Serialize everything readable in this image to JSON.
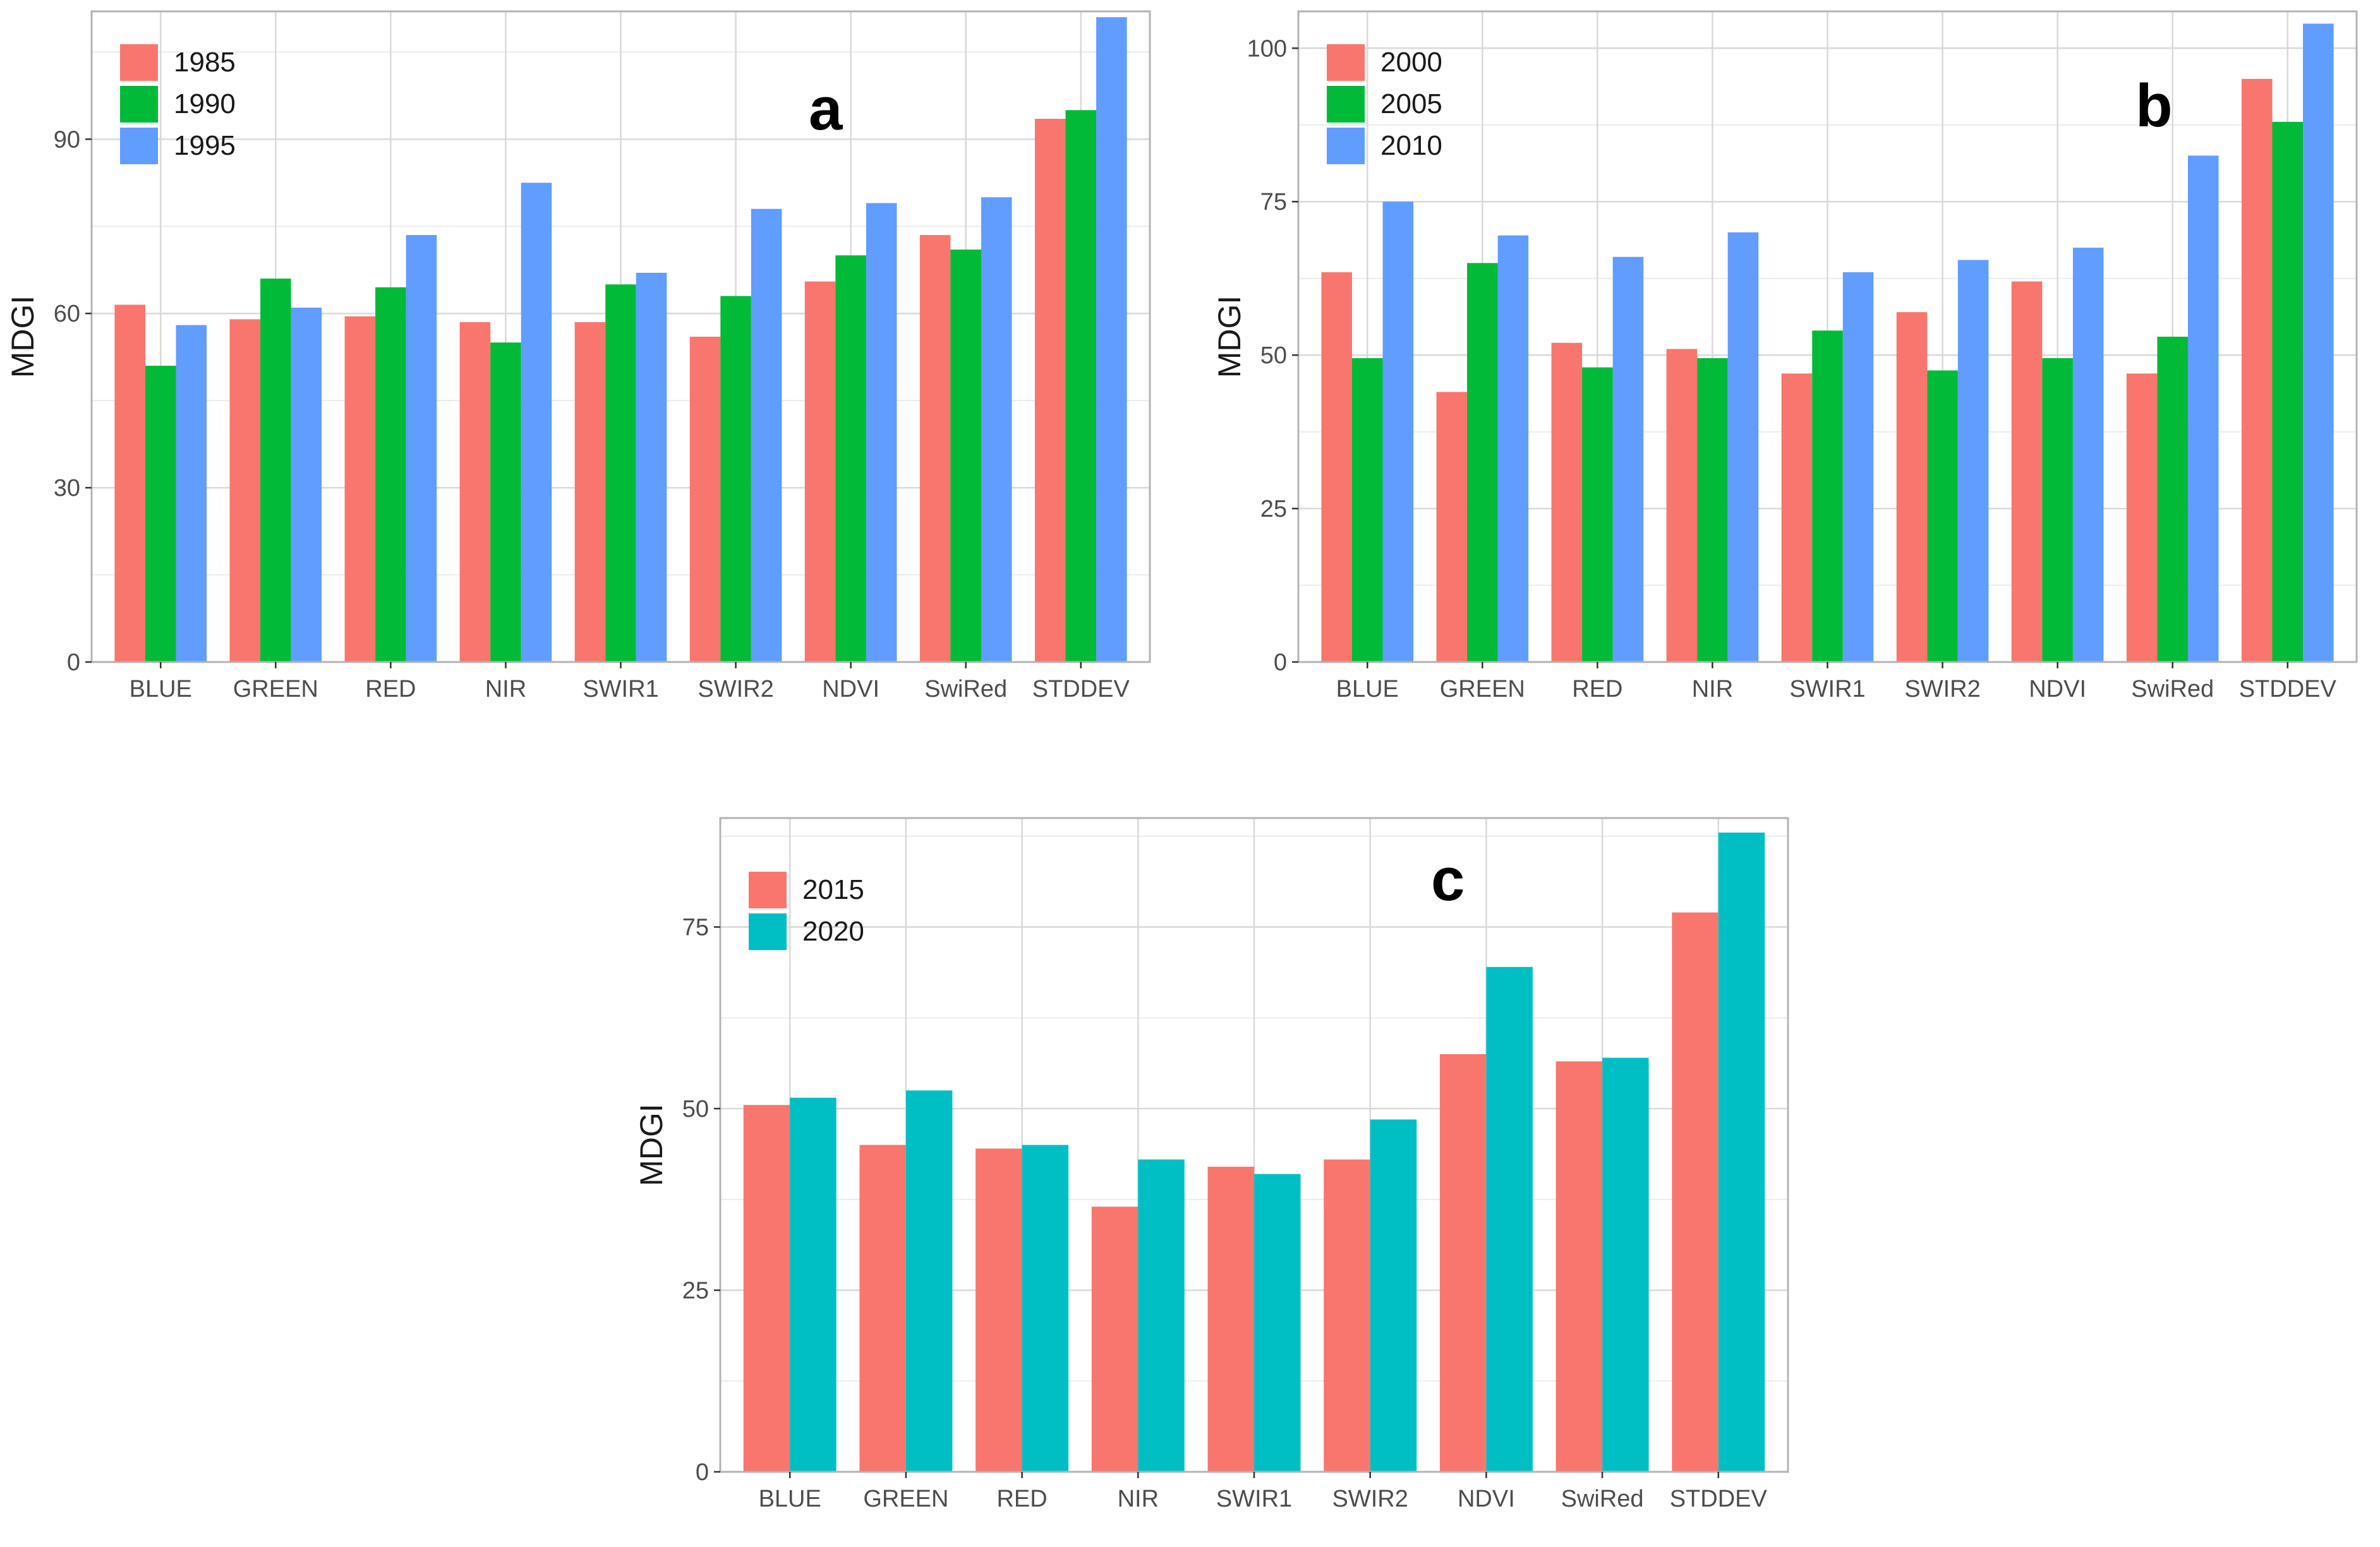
{
  "chart_data": [
    {
      "type": "bar",
      "panel_label": "a",
      "ylabel": "MDGI",
      "xlabel": "",
      "ylim": [
        0,
        112
      ],
      "yticks": [
        0,
        30,
        60,
        90
      ],
      "categories": [
        "BLUE",
        "GREEN",
        "RED",
        "NIR",
        "SWIR1",
        "SWIR2",
        "NDVI",
        "SwiRed",
        "STDDEV"
      ],
      "series": [
        {
          "name": "1985",
          "color": "#F8766D",
          "values": [
            61.5,
            59,
            59.5,
            58.5,
            58.5,
            56,
            65.5,
            73.5,
            93.5
          ]
        },
        {
          "name": "1990",
          "color": "#00BA38",
          "values": [
            51,
            66,
            64.5,
            55,
            65,
            63,
            70,
            71,
            95
          ]
        },
        {
          "name": "1995",
          "color": "#619CFF",
          "values": [
            58,
            61,
            73.5,
            82.5,
            67,
            78,
            79,
            80,
            111
          ]
        }
      ],
      "legend_position": "top-left"
    },
    {
      "type": "bar",
      "panel_label": "b",
      "ylabel": "MDGI",
      "xlabel": "",
      "ylim": [
        0,
        106
      ],
      "yticks": [
        0,
        25,
        50,
        75,
        100
      ],
      "categories": [
        "BLUE",
        "GREEN",
        "RED",
        "NIR",
        "SWIR1",
        "SWIR2",
        "NDVI",
        "SwiRed",
        "STDDEV"
      ],
      "series": [
        {
          "name": "2000",
          "color": "#F8766D",
          "values": [
            63.5,
            44,
            52,
            51,
            47,
            57,
            62,
            47,
            95
          ]
        },
        {
          "name": "2005",
          "color": "#00BA38",
          "values": [
            49.5,
            65,
            48,
            49.5,
            54,
            47.5,
            49.5,
            53,
            88
          ]
        },
        {
          "name": "2010",
          "color": "#619CFF",
          "values": [
            75,
            69.5,
            66,
            70,
            63.5,
            65.5,
            67.5,
            82.5,
            104
          ]
        }
      ],
      "legend_position": "top-left"
    },
    {
      "type": "bar",
      "panel_label": "c",
      "ylabel": "MDGI",
      "xlabel": "",
      "ylim": [
        0,
        90
      ],
      "yticks": [
        0,
        25,
        50,
        75
      ],
      "categories": [
        "BLUE",
        "GREEN",
        "RED",
        "NIR",
        "SWIR1",
        "SWIR2",
        "NDVI",
        "SwiRed",
        "STDDEV"
      ],
      "series": [
        {
          "name": "2015",
          "color": "#F8766D",
          "values": [
            50.5,
            45,
            44.5,
            36.5,
            42,
            43,
            57.5,
            56.5,
            77
          ]
        },
        {
          "name": "2020",
          "color": "#00BFC4",
          "values": [
            51.5,
            52.5,
            45,
            43,
            41,
            48.5,
            69.5,
            57,
            88
          ]
        }
      ],
      "legend_position": "top-left"
    }
  ],
  "theme": {
    "panel_border": "#b3b3b3",
    "grid_major": "#d9d9d9",
    "grid_minor": "#ececec",
    "tick_color": "#333333"
  }
}
